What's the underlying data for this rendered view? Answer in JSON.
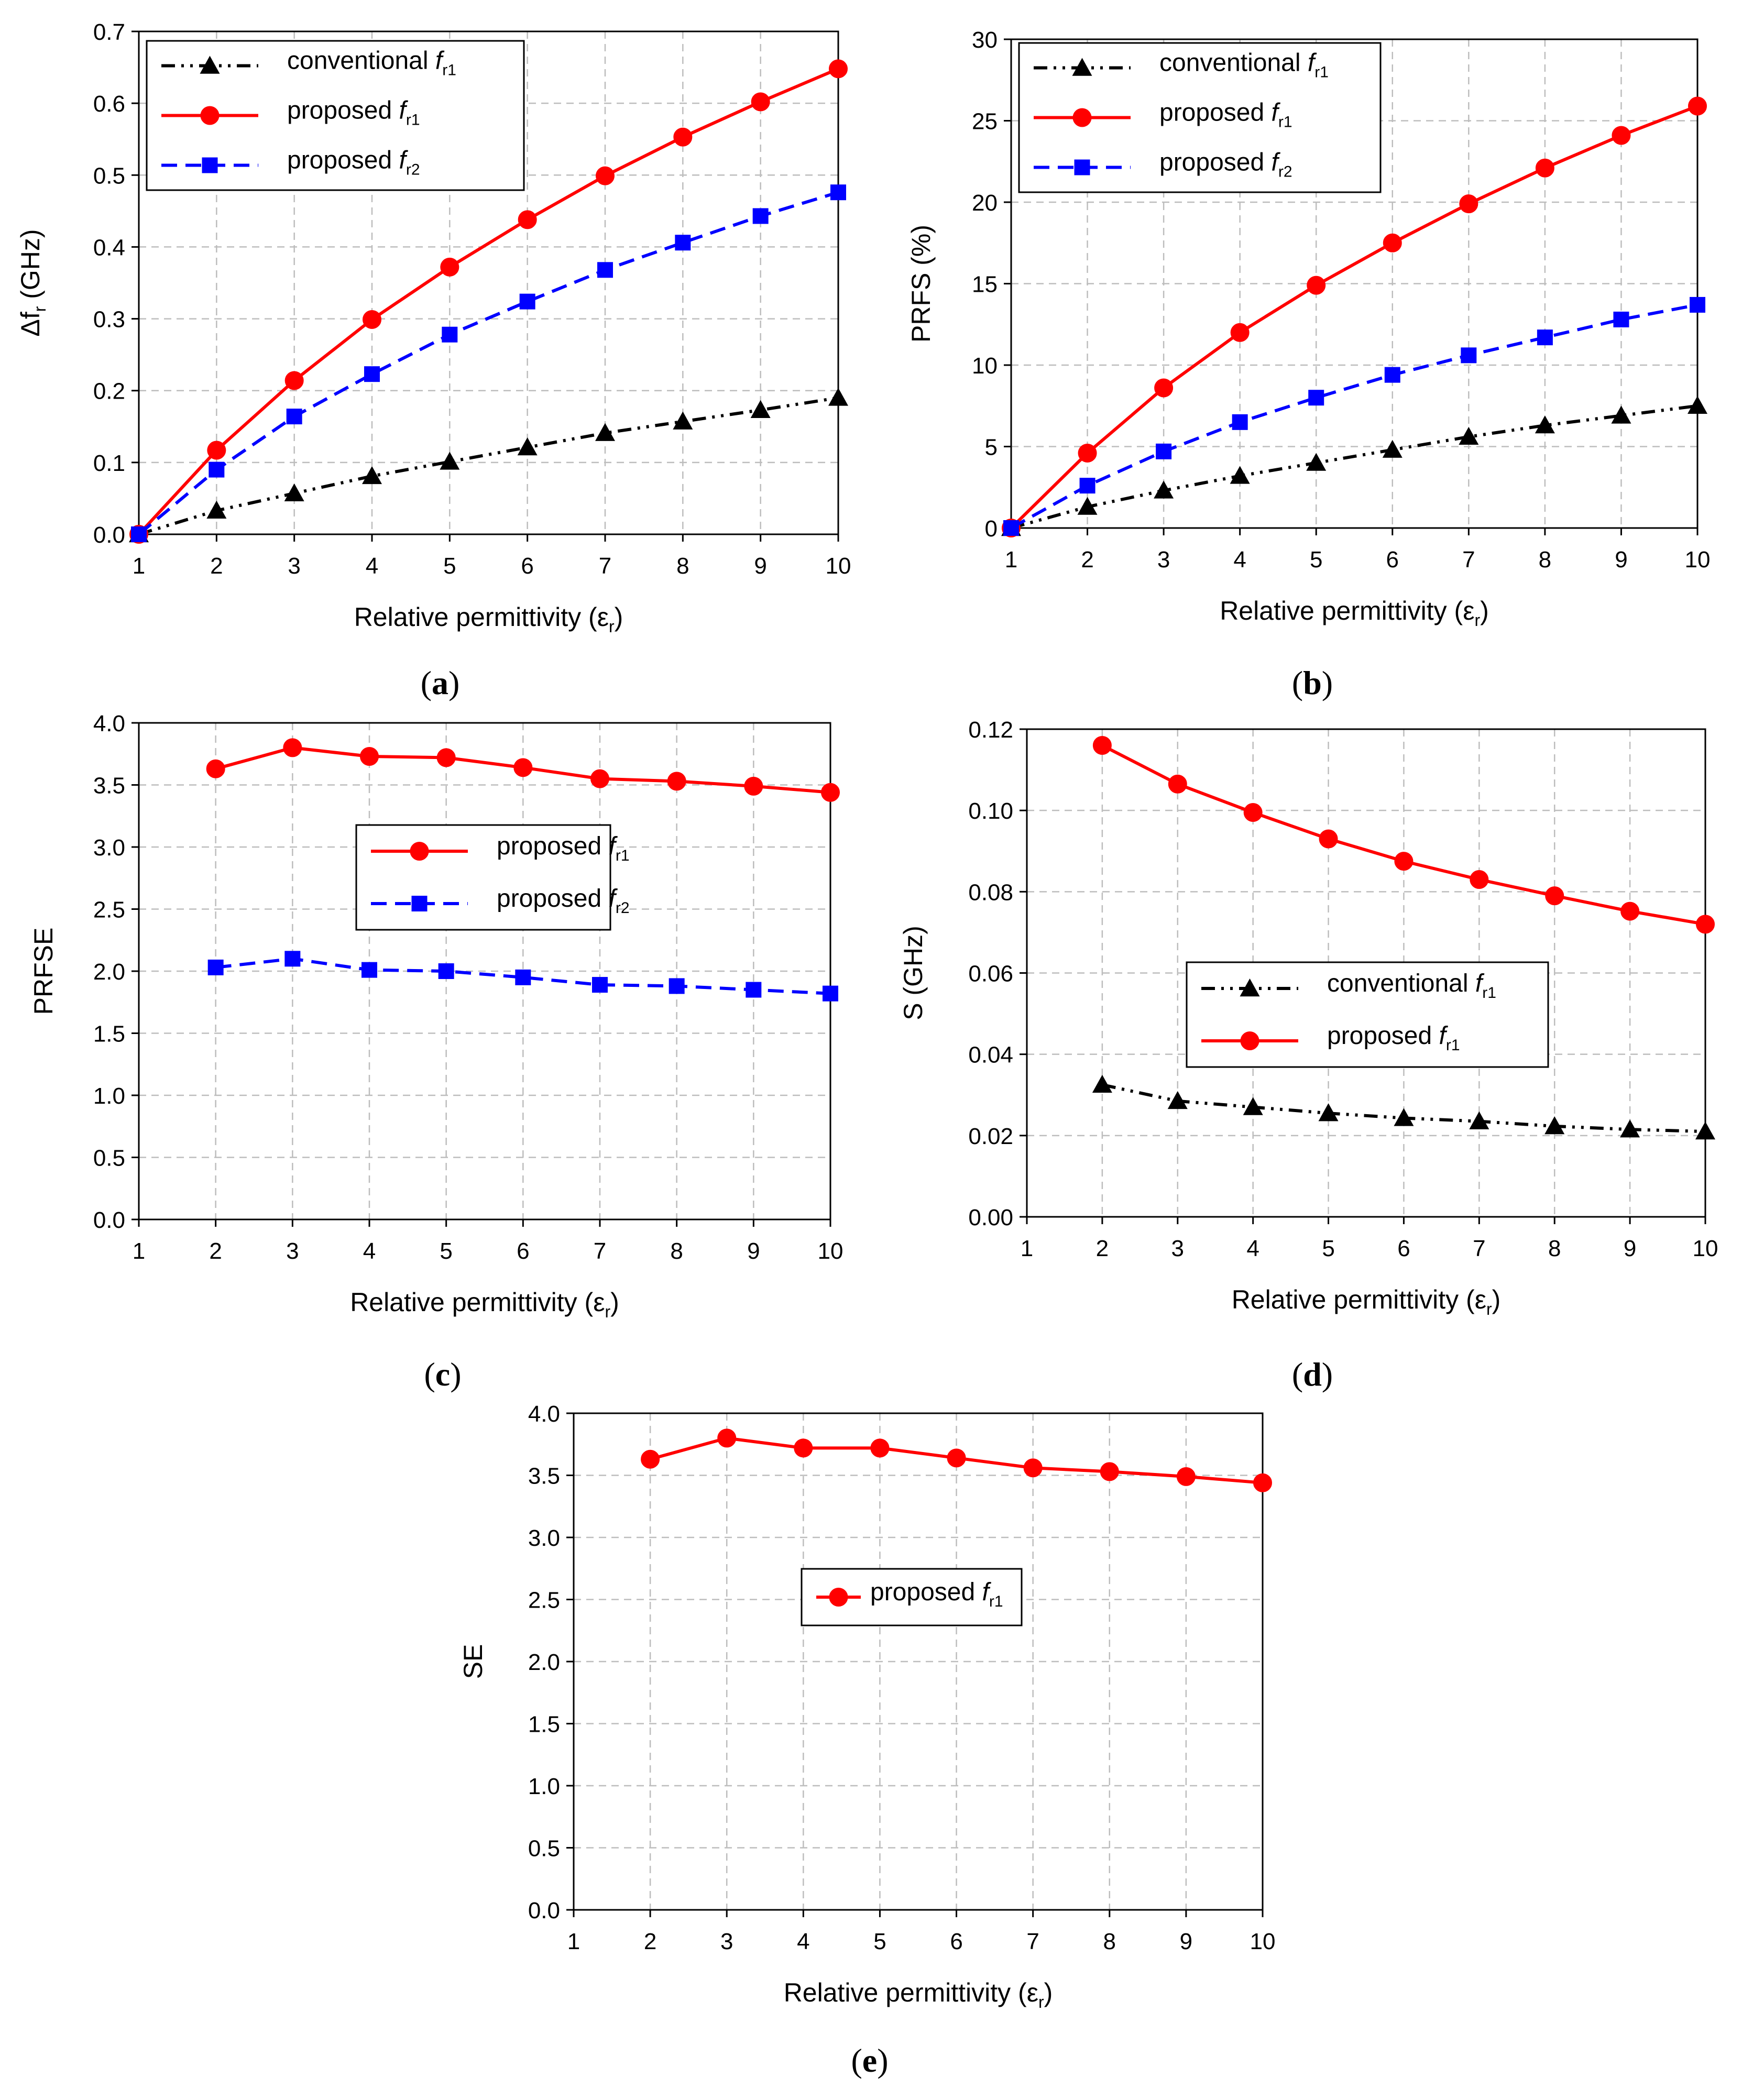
{
  "chart_data": [
    {
      "type": "line",
      "panel_label": [
        "(",
        "a",
        ")"
      ],
      "xlabel": {
        "main": "Relative permittivity (ε",
        "sub": "r",
        "tail": ")"
      },
      "ylabel": {
        "main": "Δf",
        "sub": "r",
        "tail": " (GHz)"
      },
      "x": [
        1,
        2,
        3,
        4,
        5,
        6,
        7,
        8,
        9,
        10
      ],
      "xlim": [
        1,
        10
      ],
      "ylim": [
        0,
        0.7
      ],
      "yticks": [
        "0.0",
        "0.1",
        "0.2",
        "0.3",
        "0.4",
        "0.5",
        "0.6",
        "0.7"
      ],
      "xticks": [
        "1",
        "2",
        "3",
        "4",
        "5",
        "6",
        "7",
        "8",
        "9",
        "10"
      ],
      "grid": true,
      "legend_position": "top-left",
      "series": [
        {
          "name": "conventional f",
          "name_sub": "r1",
          "color": "#000000",
          "dash": "dashdotdot",
          "marker": "triangle",
          "values": [
            0,
            0.033,
            0.057,
            0.081,
            0.101,
            0.121,
            0.141,
            0.157,
            0.173,
            0.19
          ]
        },
        {
          "name": "proposed f",
          "name_sub": "r1",
          "color": "#ff0000",
          "dash": "solid",
          "marker": "circle",
          "values": [
            0,
            0.117,
            0.214,
            0.299,
            0.372,
            0.438,
            0.499,
            0.553,
            0.602,
            0.648
          ]
        },
        {
          "name": "proposed f",
          "name_sub": "r2",
          "color": "#0000ff",
          "dash": "dashed",
          "marker": "square",
          "values": [
            0,
            0.09,
            0.164,
            0.223,
            0.278,
            0.324,
            0.368,
            0.406,
            0.443,
            0.476
          ]
        }
      ]
    },
    {
      "type": "line",
      "panel_label": [
        "(",
        "b",
        ")"
      ],
      "xlabel": {
        "main": "Relative permittivity (ε",
        "sub": "r",
        "tail": ")"
      },
      "ylabel": {
        "main": "PRFS (%)",
        "sub": "",
        "tail": ""
      },
      "x": [
        1,
        2,
        3,
        4,
        5,
        6,
        7,
        8,
        9,
        10
      ],
      "xlim": [
        1,
        10
      ],
      "ylim": [
        0,
        30
      ],
      "yticks": [
        "0",
        "5",
        "10",
        "15",
        "20",
        "25",
        "30"
      ],
      "xticks": [
        "1",
        "2",
        "3",
        "4",
        "5",
        "6",
        "7",
        "8",
        "9",
        "10"
      ],
      "grid": true,
      "legend_position": "top-left",
      "series": [
        {
          "name": "conventional f",
          "name_sub": "r1",
          "color": "#000000",
          "dash": "dashdotdot",
          "marker": "triangle",
          "values": [
            0,
            1.3,
            2.3,
            3.2,
            4.0,
            4.8,
            5.6,
            6.3,
            6.9,
            7.5
          ]
        },
        {
          "name": "proposed f",
          "name_sub": "r1",
          "color": "#ff0000",
          "dash": "solid",
          "marker": "circle",
          "values": [
            0,
            4.6,
            8.6,
            12.0,
            14.9,
            17.5,
            19.9,
            22.1,
            24.1,
            25.9
          ]
        },
        {
          "name": "proposed f",
          "name_sub": "r2",
          "color": "#0000ff",
          "dash": "dashed",
          "marker": "square",
          "values": [
            0,
            2.6,
            4.7,
            6.5,
            8.0,
            9.4,
            10.6,
            11.7,
            12.8,
            13.7
          ]
        }
      ]
    },
    {
      "type": "line",
      "panel_label": [
        "(",
        "c",
        ")"
      ],
      "xlabel": {
        "main": "Relative permittivity (ε",
        "sub": "r",
        "tail": ")"
      },
      "ylabel": {
        "main": "PRFSE",
        "sub": "",
        "tail": ""
      },
      "x": [
        1,
        2,
        3,
        4,
        5,
        6,
        7,
        8,
        9,
        10
      ],
      "xlim": [
        1,
        10
      ],
      "ylim": [
        0,
        4
      ],
      "yticks": [
        "0.0",
        "0.5",
        "1.0",
        "1.5",
        "2.0",
        "2.5",
        "3.0",
        "3.5",
        "4.0"
      ],
      "xticks": [
        "1",
        "2",
        "3",
        "4",
        "5",
        "6",
        "7",
        "8",
        "9",
        "10"
      ],
      "grid": true,
      "legend_position": "center",
      "series": [
        {
          "name": "proposed f",
          "name_sub": "r1",
          "color": "#ff0000",
          "dash": "solid",
          "marker": "circle",
          "values": [
            null,
            3.63,
            3.8,
            3.73,
            3.72,
            3.64,
            3.55,
            3.53,
            3.49,
            3.44
          ]
        },
        {
          "name": "proposed f",
          "name_sub": "r2",
          "color": "#0000ff",
          "dash": "dashed",
          "marker": "square",
          "values": [
            null,
            2.03,
            2.1,
            2.01,
            2.0,
            1.95,
            1.89,
            1.88,
            1.85,
            1.82
          ]
        }
      ]
    },
    {
      "type": "line",
      "panel_label": [
        "(",
        "d",
        ")"
      ],
      "xlabel": {
        "main": "Relative permittivity (ε",
        "sub": "r",
        "tail": ")"
      },
      "ylabel": {
        "main": "S (GHz)",
        "sub": "",
        "tail": ""
      },
      "x": [
        1,
        2,
        3,
        4,
        5,
        6,
        7,
        8,
        9,
        10
      ],
      "xlim": [
        1,
        10
      ],
      "ylim": [
        0,
        0.12
      ],
      "yticks": [
        "0.00",
        "0.02",
        "0.04",
        "0.06",
        "0.08",
        "0.10",
        "0.12"
      ],
      "xticks": [
        "1",
        "2",
        "3",
        "4",
        "5",
        "6",
        "7",
        "8",
        "9",
        "10"
      ],
      "grid": true,
      "legend_position": "center-right",
      "series": [
        {
          "name": "conventional f",
          "name_sub": "r1",
          "color": "#000000",
          "dash": "dashdotdot",
          "marker": "triangle",
          "values": [
            null,
            0.0325,
            0.0285,
            0.027,
            0.0255,
            0.0243,
            0.0235,
            0.0223,
            0.0215,
            0.021
          ]
        },
        {
          "name": "proposed f",
          "name_sub": "r1",
          "color": "#ff0000",
          "dash": "solid",
          "marker": "circle",
          "values": [
            null,
            0.116,
            0.1065,
            0.0995,
            0.093,
            0.0875,
            0.083,
            0.079,
            0.0752,
            0.072
          ]
        }
      ]
    },
    {
      "type": "line",
      "panel_label": [
        "(",
        "e",
        ")"
      ],
      "xlabel": {
        "main": "Relative permittivity (ε",
        "sub": "r",
        "tail": ")"
      },
      "ylabel": {
        "main": "SE",
        "sub": "",
        "tail": ""
      },
      "x": [
        1,
        2,
        3,
        4,
        5,
        6,
        7,
        8,
        9,
        10
      ],
      "xlim": [
        1,
        10
      ],
      "ylim": [
        0,
        4
      ],
      "yticks": [
        "0.0",
        "0.5",
        "1.0",
        "1.5",
        "2.0",
        "2.5",
        "3.0",
        "3.5",
        "4.0"
      ],
      "xticks": [
        "1",
        "2",
        "3",
        "4",
        "5",
        "6",
        "7",
        "8",
        "9",
        "10"
      ],
      "grid": true,
      "legend_position": "center",
      "series": [
        {
          "name": "proposed f",
          "name_sub": "r1",
          "color": "#ff0000",
          "dash": "solid",
          "marker": "circle",
          "values": [
            null,
            3.63,
            3.8,
            3.72,
            3.72,
            3.64,
            3.56,
            3.53,
            3.49,
            3.44
          ]
        }
      ]
    }
  ]
}
